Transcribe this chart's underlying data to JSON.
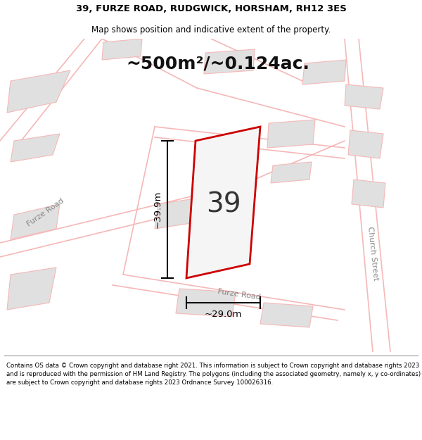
{
  "title_line1": "39, FURZE ROAD, RUDGWICK, HORSHAM, RH12 3ES",
  "title_line2": "Map shows position and indicative extent of the property.",
  "area_text": "~500m²/~0.124ac.",
  "label_39": "39",
  "dim_width": "~29.0m",
  "dim_height": "~39.9m",
  "footer": "Contains OS data © Crown copyright and database right 2021. This information is subject to Crown copyright and database rights 2023 and is reproduced with the permission of HM Land Registry. The polygons (including the associated geometry, namely x, y co-ordinates) are subject to Crown copyright and database rights 2023 Ordnance Survey 100026316.",
  "bg_color": "#ffffff",
  "map_bg": "#ffffff",
  "road_line_color": "#f5b8b8",
  "building_fill": "#e0e0e0",
  "building_edge": "#f5b8b8",
  "plot_color": "#cc0000",
  "plot_fill": "#f5f5f5",
  "title_color": "#000000",
  "footer_color": "#000000",
  "road_label_color": "#888888",
  "area_fontsize": 18,
  "label_fontsize": 28,
  "dim_fontsize": 9.5
}
